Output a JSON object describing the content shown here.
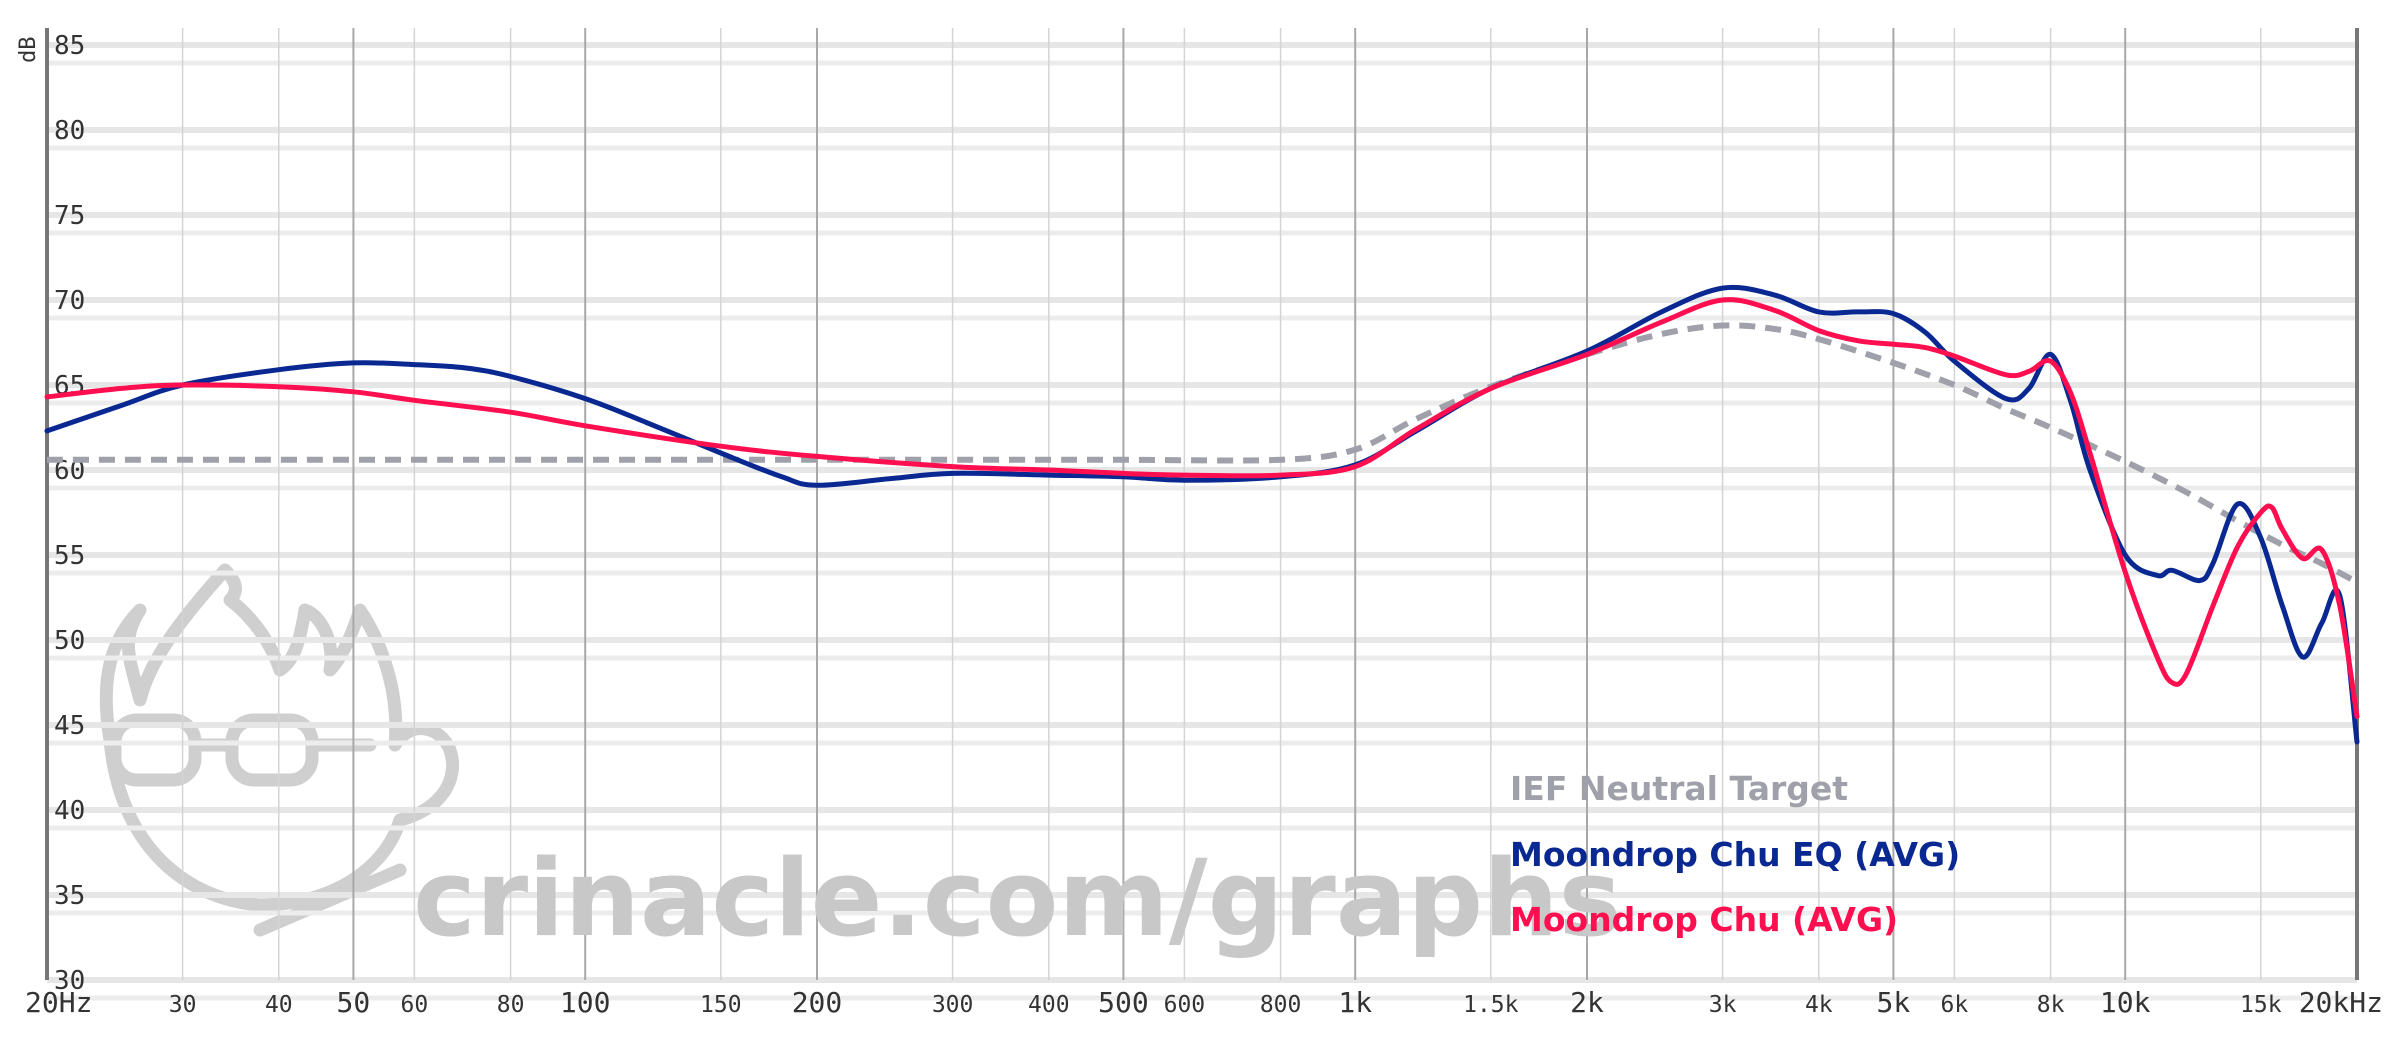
{
  "chart_data": {
    "type": "line",
    "xscale": "log",
    "xlim": [
      20,
      20000
    ],
    "ylim": [
      30,
      86
    ],
    "ylabel": "dB",
    "yticks": [
      85,
      80,
      75,
      70,
      65,
      60,
      55,
      50,
      45,
      40,
      35,
      30
    ],
    "xticks": [
      {
        "value": 20,
        "label": "20Hz",
        "major": true
      },
      {
        "value": 30,
        "label": "30",
        "major": false
      },
      {
        "value": 40,
        "label": "40",
        "major": false
      },
      {
        "value": 50,
        "label": "50",
        "major": true
      },
      {
        "value": 60,
        "label": "60",
        "major": false
      },
      {
        "value": 80,
        "label": "80",
        "major": false
      },
      {
        "value": 100,
        "label": "100",
        "major": true
      },
      {
        "value": 150,
        "label": "150",
        "major": false
      },
      {
        "value": 200,
        "label": "200",
        "major": true
      },
      {
        "value": 300,
        "label": "300",
        "major": false
      },
      {
        "value": 400,
        "label": "400",
        "major": false
      },
      {
        "value": 500,
        "label": "500",
        "major": true
      },
      {
        "value": 600,
        "label": "600",
        "major": false
      },
      {
        "value": 800,
        "label": "800",
        "major": false
      },
      {
        "value": 1000,
        "label": "1k",
        "major": true
      },
      {
        "value": 1500,
        "label": "1.5k",
        "major": false
      },
      {
        "value": 2000,
        "label": "2k",
        "major": true
      },
      {
        "value": 3000,
        "label": "3k",
        "major": false
      },
      {
        "value": 4000,
        "label": "4k",
        "major": false
      },
      {
        "value": 5000,
        "label": "5k",
        "major": true
      },
      {
        "value": 6000,
        "label": "6k",
        "major": false
      },
      {
        "value": 8000,
        "label": "8k",
        "major": false
      },
      {
        "value": 10000,
        "label": "10k",
        "major": true
      },
      {
        "value": 15000,
        "label": "15k",
        "major": false
      },
      {
        "value": 20000,
        "label": "20kHz",
        "major": true
      }
    ],
    "grid": true,
    "legend_position": "bottom-right",
    "series": [
      {
        "name": "IEF Neutral Target",
        "color": "#a0a0aa",
        "dashed": true,
        "points": [
          [
            20,
            60.6
          ],
          [
            100,
            60.6
          ],
          [
            300,
            60.6
          ],
          [
            500,
            60.6
          ],
          [
            800,
            60.6
          ],
          [
            1000,
            61.2
          ],
          [
            1200,
            63
          ],
          [
            1500,
            64.9
          ],
          [
            2000,
            66.8
          ],
          [
            2500,
            68
          ],
          [
            3000,
            68.5
          ],
          [
            3500,
            68.3
          ],
          [
            4000,
            67.7
          ],
          [
            5000,
            66.3
          ],
          [
            6000,
            65
          ],
          [
            7000,
            63.6
          ],
          [
            8000,
            62.5
          ],
          [
            10000,
            60.5
          ],
          [
            12000,
            58.7
          ],
          [
            14000,
            57
          ],
          [
            16000,
            55.6
          ],
          [
            18000,
            54.5
          ],
          [
            20000,
            53.4
          ]
        ]
      },
      {
        "name": "Moondrop Chu EQ (AVG)",
        "color": "#0a2891",
        "dashed": false,
        "points": [
          [
            20,
            62.3
          ],
          [
            25,
            63.8
          ],
          [
            30,
            65
          ],
          [
            40,
            65.9
          ],
          [
            50,
            66.3
          ],
          [
            60,
            66.2
          ],
          [
            70,
            66
          ],
          [
            80,
            65.5
          ],
          [
            100,
            64.2
          ],
          [
            120,
            62.8
          ],
          [
            150,
            61
          ],
          [
            180,
            59.6
          ],
          [
            200,
            59.1
          ],
          [
            250,
            59.5
          ],
          [
            300,
            59.8
          ],
          [
            400,
            59.7
          ],
          [
            500,
            59.6
          ],
          [
            600,
            59.4
          ],
          [
            800,
            59.6
          ],
          [
            1000,
            60.3
          ],
          [
            1200,
            62.3
          ],
          [
            1500,
            64.8
          ],
          [
            2000,
            67
          ],
          [
            2500,
            69.3
          ],
          [
            3000,
            70.7
          ],
          [
            3500,
            70.3
          ],
          [
            4000,
            69.3
          ],
          [
            4500,
            69.3
          ],
          [
            5000,
            69.2
          ],
          [
            5500,
            68.1
          ],
          [
            6000,
            66.4
          ],
          [
            7000,
            64.2
          ],
          [
            7500,
            64.8
          ],
          [
            8000,
            66.8
          ],
          [
            8500,
            64
          ],
          [
            9000,
            60
          ],
          [
            10000,
            55
          ],
          [
            11000,
            53.8
          ],
          [
            11500,
            54.1
          ],
          [
            12500,
            53.5
          ],
          [
            13000,
            54.5
          ],
          [
            14000,
            58
          ],
          [
            15000,
            56
          ],
          [
            16000,
            52
          ],
          [
            17000,
            49
          ],
          [
            18000,
            51
          ],
          [
            19000,
            52.6
          ],
          [
            20000,
            44
          ]
        ]
      },
      {
        "name": "Moondrop Chu (AVG)",
        "color": "#ff0f50",
        "dashed": false,
        "points": [
          [
            20,
            64.3
          ],
          [
            25,
            64.8
          ],
          [
            30,
            65
          ],
          [
            40,
            64.9
          ],
          [
            50,
            64.6
          ],
          [
            60,
            64.1
          ],
          [
            80,
            63.4
          ],
          [
            100,
            62.6
          ],
          [
            150,
            61.4
          ],
          [
            200,
            60.8
          ],
          [
            300,
            60.2
          ],
          [
            400,
            60
          ],
          [
            500,
            59.8
          ],
          [
            600,
            59.7
          ],
          [
            800,
            59.7
          ],
          [
            1000,
            60.2
          ],
          [
            1200,
            62.4
          ],
          [
            1500,
            64.8
          ],
          [
            2000,
            66.8
          ],
          [
            2500,
            68.7
          ],
          [
            3000,
            70
          ],
          [
            3500,
            69.4
          ],
          [
            4000,
            68.2
          ],
          [
            4500,
            67.6
          ],
          [
            5000,
            67.4
          ],
          [
            5500,
            67.2
          ],
          [
            6000,
            66.7
          ],
          [
            7000,
            65.6
          ],
          [
            7500,
            65.8
          ],
          [
            8000,
            66.4
          ],
          [
            8500,
            64.5
          ],
          [
            9000,
            61
          ],
          [
            10000,
            54
          ],
          [
            11000,
            49
          ],
          [
            11500,
            47.5
          ],
          [
            12000,
            48
          ],
          [
            13000,
            52
          ],
          [
            14000,
            55.5
          ],
          [
            15000,
            57.5
          ],
          [
            15500,
            57.8
          ],
          [
            16000,
            56.5
          ],
          [
            17000,
            54.8
          ],
          [
            18000,
            55.3
          ],
          [
            19000,
            52
          ],
          [
            20000,
            45.5
          ]
        ]
      }
    ]
  },
  "watermark": {
    "text": "crinacle.com/graphs"
  }
}
